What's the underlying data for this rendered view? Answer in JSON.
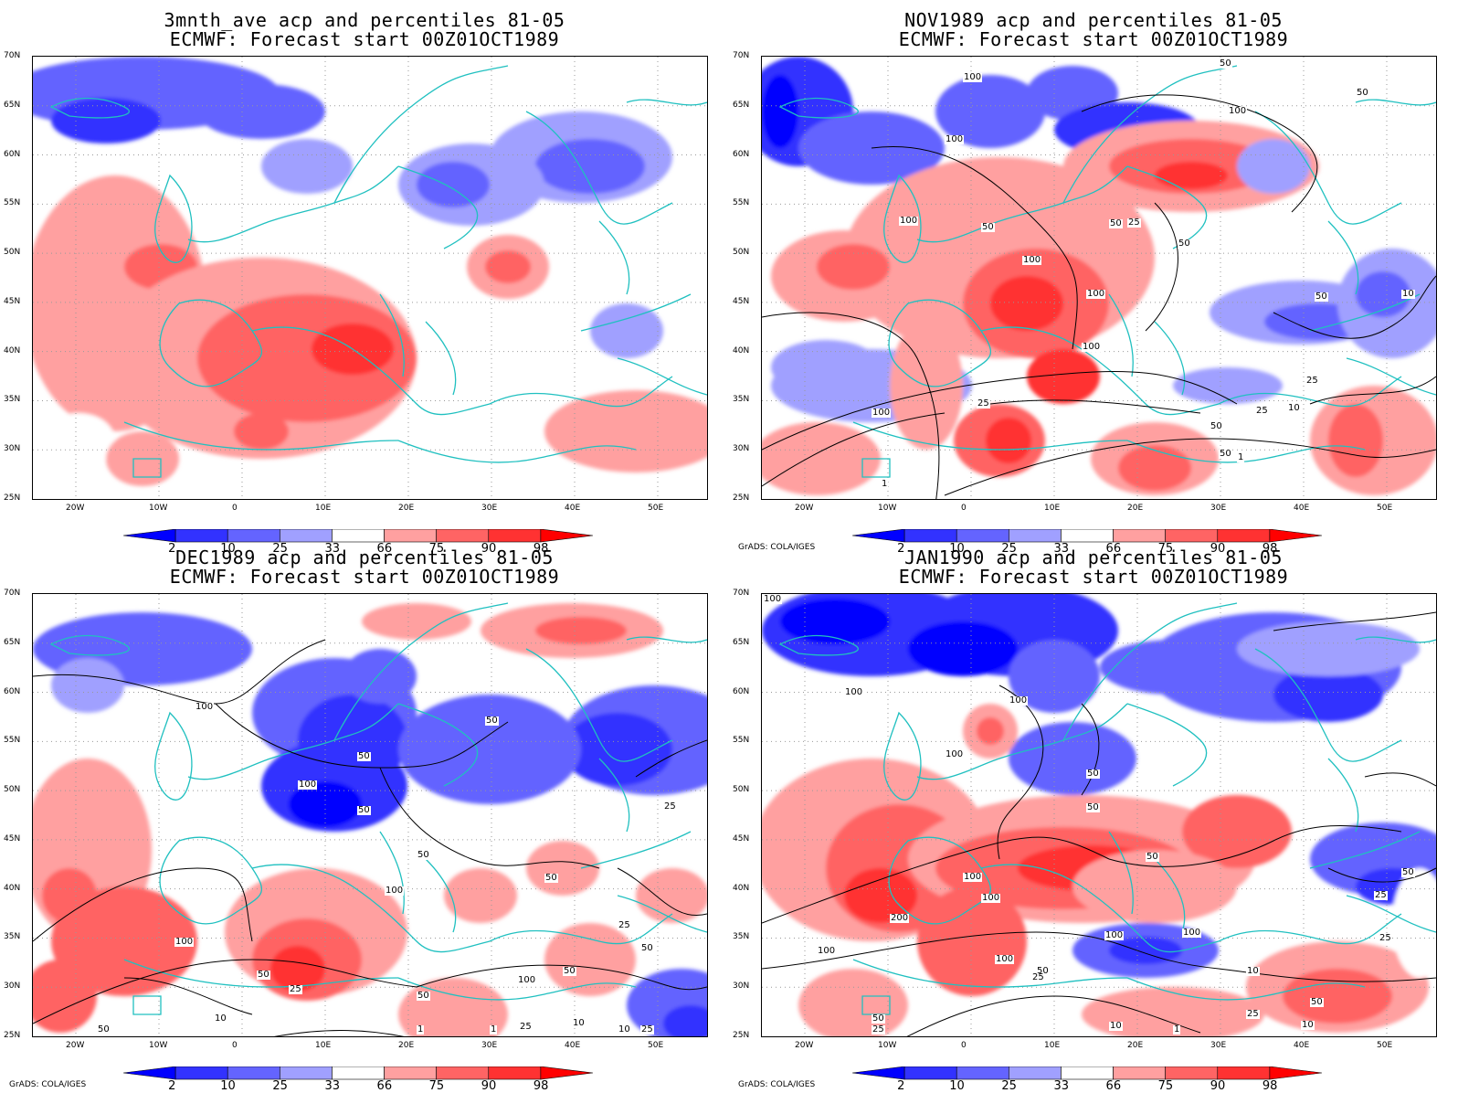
{
  "panels": [
    {
      "title_line1": "3mnth_ave acp and percentiles 81-05",
      "title_line2": "ECMWF: Forecast start 00Z01OCT1989",
      "credit": "",
      "contour_labels": []
    },
    {
      "title_line1": "NOV1989 acp and percentiles 81-05",
      "title_line2": "ECMWF: Forecast start 00Z01OCT1989",
      "credit": "GrADS: COLA/IGES",
      "contour_labels": [
        "100",
        "50",
        "50",
        "100",
        "100",
        "100",
        "50",
        "50",
        "100",
        "50",
        "100",
        "100",
        "50",
        "25",
        "50",
        "10",
        "25",
        "100",
        "50",
        "25",
        "10",
        "1",
        "25",
        "1"
      ]
    },
    {
      "title_line1": "DEC1989 acp and percentiles 81-05",
      "title_line2": "ECMWF: Forecast start 00Z01OCT1989",
      "credit": "GrADS: COLA/IGES",
      "contour_labels": [
        "50",
        "100",
        "50",
        "100",
        "50",
        "25",
        "50",
        "50",
        "100",
        "25",
        "100",
        "50",
        "50",
        "50",
        "100",
        "50",
        "25",
        "25",
        "10",
        "50",
        "10",
        "1",
        "1",
        "10",
        "25"
      ]
    },
    {
      "title_line1": "JAN1990 acp and percentiles 81-05",
      "title_line2": "ECMWF: Forecast start 00Z01OCT1989",
      "credit": "GrADS: COLA/IGES",
      "contour_labels": [
        "100",
        "100",
        "100",
        "50",
        "50",
        "100",
        "50",
        "100",
        "100",
        "200",
        "100",
        "100",
        "100",
        "100",
        "50",
        "25",
        "50",
        "25",
        "25",
        "10",
        "50",
        "25",
        "10",
        "1",
        "50",
        "25",
        "10"
      ]
    }
  ],
  "axes": {
    "lat_labels": [
      "70N",
      "65N",
      "60N",
      "55N",
      "50N",
      "45N",
      "40N",
      "35N",
      "30N",
      "25N"
    ],
    "lon_labels": [
      "20W",
      "10W",
      "0",
      "10E",
      "20E",
      "30E",
      "40E",
      "50E"
    ]
  },
  "colorbar": {
    "labels": [
      "2",
      "10",
      "25",
      "33",
      "66",
      "75",
      "90",
      "98"
    ],
    "colors": [
      "#0000ff",
      "#3232ff",
      "#6464ff",
      "#a0a0ff",
      "#ffffff",
      "#ffa0a0",
      "#ff6464",
      "#ff3232",
      "#ff0000"
    ]
  },
  "coastline_color": "#20c0c0"
}
